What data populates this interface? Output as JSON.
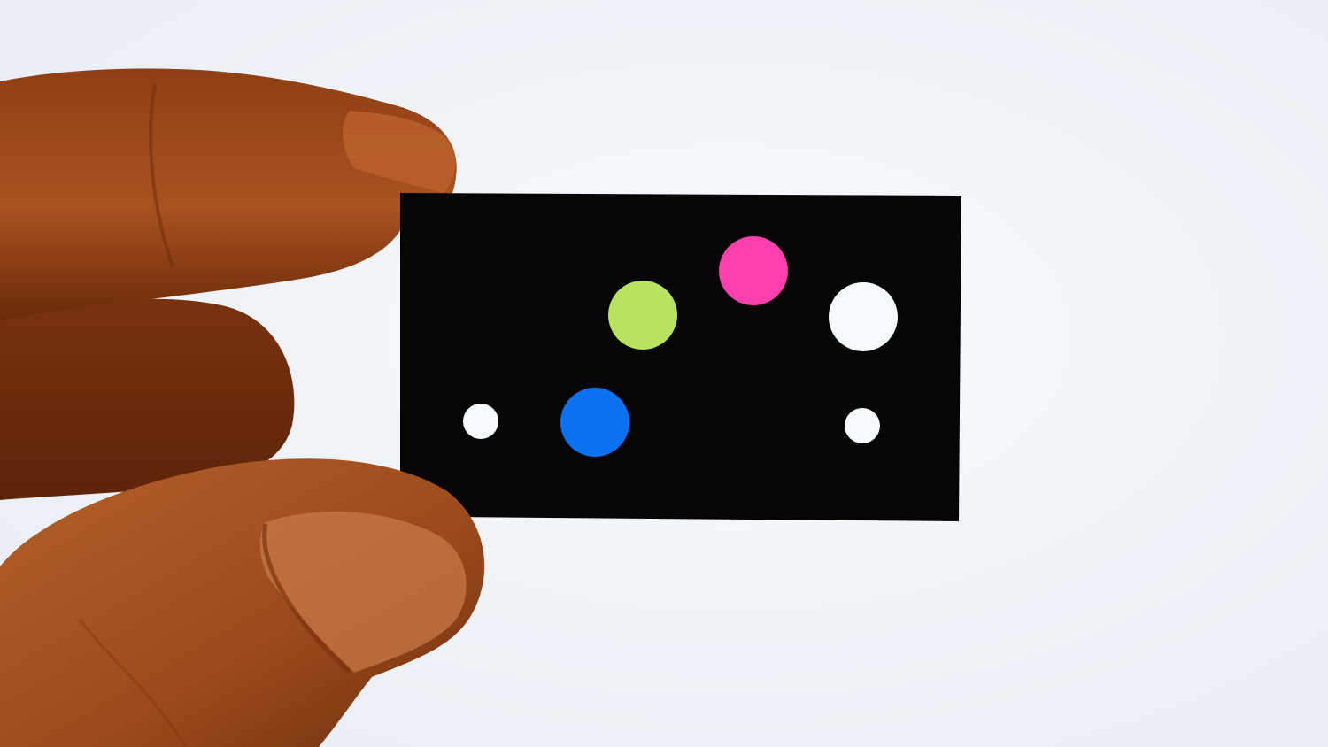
{
  "scene": {
    "subject": "backlit-card-with-holes",
    "colors": {
      "backdrop": "#f2f6fb",
      "backdrop_edge": "#e4eaf1",
      "card": "#070505",
      "skin_dark": "#6e2d0c",
      "skin_mid": "#a44e1e",
      "skin_light": "#c9763e",
      "nail": "#d9936a",
      "hole_clear": "#f7fafc",
      "hole_green": "#b7e35c",
      "hole_pink": "#ff3fae",
      "hole_blue": "#0a72f0"
    },
    "holes": [
      {
        "name": "green-hole",
        "color": "#b7e35c"
      },
      {
        "name": "pink-hole",
        "color": "#ff3fae"
      },
      {
        "name": "large-clear-hole",
        "color": "#f7fafc"
      },
      {
        "name": "blue-hole",
        "color": "#0a72f0"
      },
      {
        "name": "small-clear-hole-left",
        "color": "#f7fafc"
      },
      {
        "name": "small-clear-hole-right",
        "color": "#f7fafc"
      }
    ]
  }
}
